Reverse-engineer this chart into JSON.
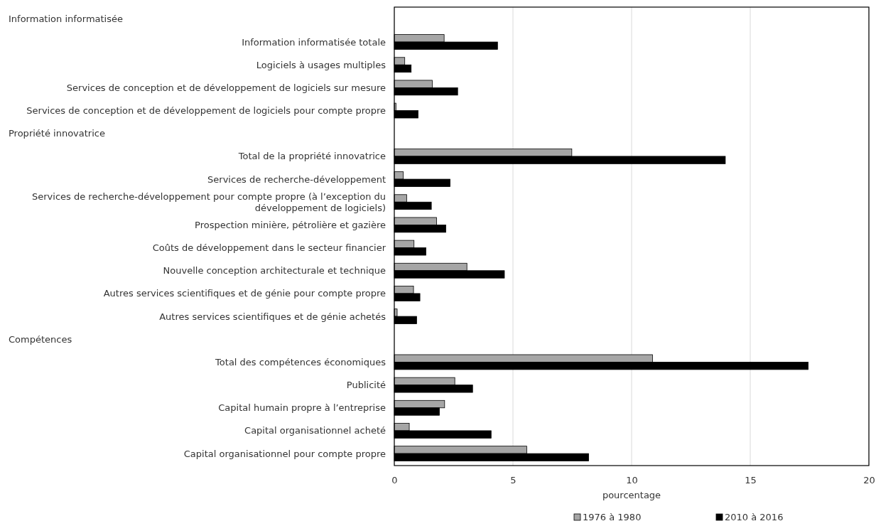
{
  "chart_data": {
    "type": "bar",
    "orientation": "horizontal",
    "xlabel": "pourcentage",
    "annotations": [
      "Information informatisée",
      "Propriété innovatrice",
      "Compétences"
    ],
    "categories": [
      null,
      "Information informatisée totale",
      "Logiciels à usages multiples",
      "Services de conception et de développement de logiciels sur mesure",
      "Services de conception et de développement de logiciels pour compte propre",
      null,
      "Total de la propriété innovatrice",
      "Services de recherche-développement",
      "Services de recherche-développement pour compte propre (à l’exception du développement de logiciels)",
      "Prospection minière, pétrolière et gazière",
      "Coûts de développement dans le secteur financier",
      "Nouvelle conception architecturale et technique",
      "Autres services scientifiques et de génie pour compte propre",
      "Autres services scientifiques et de génie achetés",
      null,
      "Total des compétences économiques",
      "Publicité",
      "Capital humain propre à l’entreprise",
      "Capital organisationnel acheté",
      "Capital organisationnel pour compte propre"
    ],
    "series": [
      {
        "name": "1976 à 1980",
        "color": "#a6a6a6",
        "values": [
          null,
          2.1,
          0.44,
          1.6,
          0.07,
          null,
          7.48,
          0.38,
          0.52,
          1.78,
          0.83,
          3.06,
          0.81,
          0.12,
          null,
          10.88,
          2.55,
          2.12,
          0.63,
          5.58
        ]
      },
      {
        "name": "2010 à 2016",
        "color": "#000000",
        "values": [
          null,
          4.35,
          0.71,
          2.67,
          1.0,
          null,
          13.95,
          2.35,
          1.56,
          2.17,
          1.33,
          4.64,
          1.08,
          0.94,
          null,
          17.44,
          3.3,
          1.9,
          4.08,
          8.19
        ]
      }
    ],
    "xlim": [
      0,
      20
    ],
    "xticks": [
      0,
      5,
      10,
      15,
      20
    ],
    "grid": "x",
    "legend": "bottom"
  }
}
